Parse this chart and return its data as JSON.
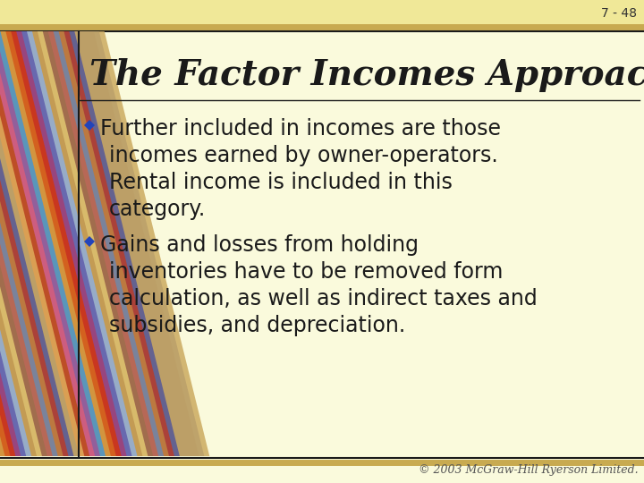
{
  "slide_number": "7 - 48",
  "title": "The Factor Incomes Approach",
  "bullet1_line1": "Further included in incomes are those",
  "bullet1_line2": "incomes earned by owner-operators.",
  "bullet1_line3": "Rental income is included in this",
  "bullet1_line4": "category.",
  "bullet2_line1": "Gains and losses from holding",
  "bullet2_line2": "inventories have to be removed form",
  "bullet2_line3": "calculation, as well as indirect taxes and",
  "bullet2_line4": "subsidies, and depreciation.",
  "footer": "© 2003 McGraw-Hill Ryerson Limited.",
  "bg_color": "#fafadc",
  "top_bar_color": "#f0e898",
  "outer_border_color": "#c8aa50",
  "inner_border_color": "#1a1a1a",
  "title_color": "#1a1a1a",
  "bullet_color": "#1a1a1a",
  "diamond_color": "#2244bb",
  "slide_num_color": "#333333",
  "footer_color": "#555555",
  "title_fontsize": 28,
  "bullet_fontsize": 17,
  "slide_num_fontsize": 10,
  "footer_fontsize": 9,
  "colors_list": [
    "#e8952a",
    "#d4581a",
    "#c83020",
    "#904890",
    "#6070b8",
    "#a0b8cc",
    "#cc9840",
    "#dcc070",
    "#986048",
    "#bc6858",
    "#7088a8",
    "#c87830",
    "#a83838",
    "#5868a0",
    "#ccaa60",
    "#e0a050",
    "#b84020",
    "#d06090",
    "#8860a0",
    "#50a0c0"
  ]
}
